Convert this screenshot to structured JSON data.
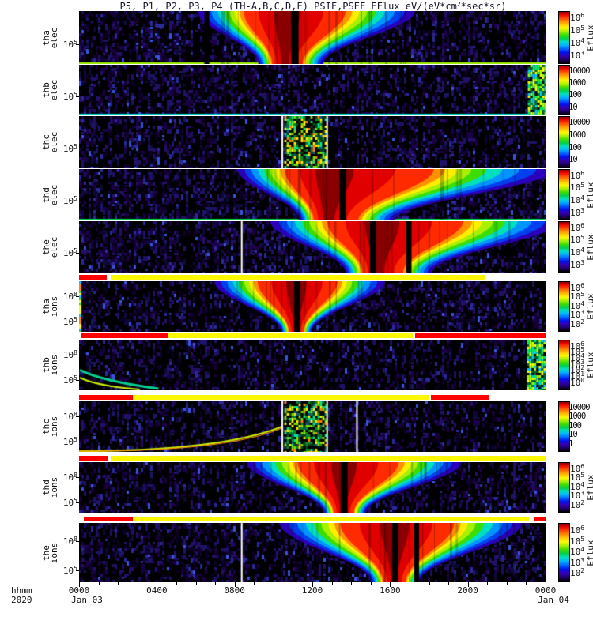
{
  "title": {
    "pre": "P5, P1, P2, P3, P4 (TH-A,B,C,D,E) PSIF,PSEF EFlux eV/(eV*cm",
    "sup": "2",
    "post": "*sec*sr)"
  },
  "axis": {
    "unit_label": "hhmm",
    "year": "2020",
    "date_start": "Jan 03",
    "date_end": "Jan 04",
    "major_ticks": [
      {
        "hour": 0,
        "label": "0000"
      },
      {
        "hour": 4,
        "label": "0400"
      },
      {
        "hour": 8,
        "label": "0800"
      },
      {
        "hour": 12,
        "label": "1200"
      },
      {
        "hour": 16,
        "label": "1600"
      },
      {
        "hour": 20,
        "label": "2000"
      },
      {
        "hour": 24,
        "label": "0000"
      }
    ],
    "hours_span": 24
  },
  "colors": {
    "quality_red": "#ff0000",
    "quality_yellow": "#fdf800",
    "background": "#ffffff",
    "spectrogram_floor": "#000000"
  },
  "chart_data": {
    "type": "heatmap",
    "subtype": "time-energy spectrogram stack",
    "x_axis": "Time (UT) Jan 03 2020 00:00 - Jan 04 2020 00:00",
    "y_axis": "Energy (eV), log scale",
    "z_axis": "EFlux eV/(eV*cm^2*sec*sr), rainbow color scale",
    "panels": [
      {
        "id": "tha-elec",
        "label_lines": [
          "tha",
          "elec"
        ],
        "yticks": [
          {
            "label": "10^5",
            "pos": 0.62
          }
        ],
        "colorbar": {
          "style": "exp",
          "label": "Eflux",
          "ticks": [
            "10^6",
            "10^5",
            "10^4",
            "10^3"
          ]
        },
        "description": "Intense electron flux enhancement ~06:00-16:00 UT with data gap near 11:00",
        "paint": {
          "seed": 11,
          "density": 0.55,
          "features": [
            {
              "type": "bottom_line",
              "color": "#9dee00"
            },
            {
              "type": "blob",
              "shape": "fan",
              "x0": 0.255,
              "peak": 0.44,
              "x1": 0.72,
              "botFactor": 0.3
            },
            {
              "type": "gap",
              "x": 0.272,
              "w": 0.005
            },
            {
              "type": "gap",
              "x": 0.458,
              "w": 0.011
            }
          ]
        }
      },
      {
        "id": "thb-elec",
        "label_lines": [
          "thb",
          "elec"
        ],
        "yticks": [
          {
            "label": "10^5",
            "pos": 0.62
          }
        ],
        "colorbar": {
          "style": "plain",
          "label": "",
          "ticks": [
            "10000",
            "1000",
            "100",
            "10"
          ]
        },
        "description": "Low background flux; enhancement at right edge near 24:00",
        "paint": {
          "seed": 23,
          "density": 0.52,
          "features": [
            {
              "type": "bottom_line",
              "color": "#00e8d0"
            },
            {
              "type": "right_edge_patch",
              "x0": 0.962
            }
          ]
        }
      },
      {
        "id": "thc-elec",
        "label_lines": [
          "thc",
          "elec"
        ],
        "yticks": [
          {
            "label": "10^5",
            "pos": 0.62
          }
        ],
        "colorbar": {
          "style": "plain",
          "label": "",
          "ticks": [
            "10000",
            "1000",
            "100",
            "10"
          ]
        },
        "description": "Quiet background with burst-mode block ~10:30-12:30",
        "paint": {
          "seed": 37,
          "density": 0.5,
          "features": [
            {
              "type": "burst_block",
              "x0": 0.44,
              "x1": 0.527
            },
            {
              "type": "white_line",
              "x": 0.434
            },
            {
              "type": "white_line",
              "x": 0.53
            }
          ]
        }
      },
      {
        "id": "thd-elec",
        "label_lines": [
          "thd",
          "elec"
        ],
        "yticks": [
          {
            "label": "10^5",
            "pos": 0.62
          }
        ],
        "colorbar": {
          "style": "exp",
          "label": "Eflux",
          "ticks": [
            "10^6",
            "10^5",
            "10^4",
            "10^3"
          ]
        },
        "description": "Broad electron enhancement ~08:00-24:00 UT, gap near 13:30",
        "paint": {
          "seed": 41,
          "density": 0.55,
          "features": [
            {
              "type": "bottom_line",
              "color": "#00e050"
            },
            {
              "type": "blob",
              "shape": "fan",
              "x0": 0.34,
              "peak": 0.53,
              "x1": 1.02,
              "botFactor": 0.3
            },
            {
              "type": "gap",
              "x": 0.562,
              "w": 0.009
            }
          ]
        }
      },
      {
        "id": "the-elec",
        "label_lines": [
          "the",
          "elec"
        ],
        "yticks": [
          {
            "label": "10^5",
            "pos": 0.62
          }
        ],
        "colorbar": {
          "style": "exp",
          "label": "Eflux",
          "ticks": [
            "10^6",
            "10^5",
            "10^4",
            "10^3"
          ]
        },
        "description": "Electron enhancement ~10:00-24:00 UT, gaps near 15:00 and 17:00",
        "paint": {
          "seed": 53,
          "density": 0.55,
          "features": [
            {
              "type": "white_line",
              "x": 0.347
            },
            {
              "type": "blob",
              "shape": "fan",
              "x0": 0.41,
              "peak": 0.64,
              "x1": 1.03,
              "botFactor": 0.3
            },
            {
              "type": "gap",
              "x": 0.627,
              "w": 0.008
            },
            {
              "type": "gap",
              "x": 0.705,
              "w": 0.006
            }
          ]
        }
      },
      {
        "id": "tha-ions",
        "label_lines": [
          "tha",
          "ions"
        ],
        "yticks": [
          {
            "label": "10^8",
            "pos": 0.3
          },
          {
            "label": "10^5",
            "pos": 0.8
          }
        ],
        "colorbar": {
          "style": "exp",
          "label": "Eflux",
          "ticks": [
            "10^6",
            "10^5",
            "10^4",
            "10^3",
            "10^2"
          ]
        },
        "description": "Ion flux funnel ~07:00-16:00 UT centered near 11:00, gap at center",
        "paint": {
          "seed": 61,
          "density": 0.5,
          "features": [
            {
              "type": "left_edge_strip"
            },
            {
              "type": "blob",
              "shape": "funnel",
              "x0": 0.29,
              "peak": 0.465,
              "x1": 0.655,
              "botFactor": 0.18
            },
            {
              "type": "gap",
              "x": 0.465,
              "w": 0.008
            }
          ]
        }
      },
      {
        "id": "thb-ions",
        "label_lines": [
          "thb",
          "ions"
        ],
        "yticks": [
          {
            "label": "10^8",
            "pos": 0.3
          },
          {
            "label": "10^5",
            "pos": 0.8
          }
        ],
        "colorbar": {
          "style": "exp",
          "label": "Eflux",
          "ticks": [
            "10^6",
            "10^5",
            "10^4",
            "10^3",
            "10^2",
            "10^1",
            "10^0"
          ]
        },
        "description": "Quiet ion background; low-energy wisp at start of day; enhancement at right edge",
        "paint": {
          "seed": 71,
          "density": 0.42,
          "features": [
            {
              "type": "wisp"
            },
            {
              "type": "right_edge_patch",
              "x0": 0.96
            }
          ]
        }
      },
      {
        "id": "thc-ions",
        "label_lines": [
          "thc",
          "ions"
        ],
        "yticks": [
          {
            "label": "10^8",
            "pos": 0.3
          },
          {
            "label": "10^5",
            "pos": 0.8
          }
        ],
        "colorbar": {
          "style": "plain",
          "label": "",
          "ticks": [
            "10000",
            "1000",
            "100",
            "10",
            "1"
          ]
        },
        "description": "Rising low-energy ion band 00:00-10:30; burst-mode block ~10:30-12:30",
        "paint": {
          "seed": 83,
          "density": 0.45,
          "features": [
            {
              "type": "rising_line",
              "x0": 0.0,
              "x1": 0.435,
              "y1": 0.5
            },
            {
              "type": "burst_block",
              "x0": 0.44,
              "x1": 0.527
            },
            {
              "type": "white_line",
              "x": 0.434
            },
            {
              "type": "white_line",
              "x": 0.53
            },
            {
              "type": "white_line",
              "x": 0.594
            }
          ]
        }
      },
      {
        "id": "thd-ions",
        "label_lines": [
          "thd",
          "ions"
        ],
        "yticks": [
          {
            "label": "10^8",
            "pos": 0.3
          },
          {
            "label": "10^5",
            "pos": 0.8
          }
        ],
        "colorbar": {
          "style": "exp",
          "label": "Eflux",
          "ticks": [
            "10^6",
            "10^5",
            "10^4",
            "10^3",
            "10^2"
          ]
        },
        "description": "Ion flux funnel ~09:00-20:00 UT centered near 13:30, gap at center",
        "paint": {
          "seed": 97,
          "density": 0.5,
          "features": [
            {
              "type": "blob",
              "shape": "funnel",
              "x0": 0.36,
              "peak": 0.565,
              "x1": 0.82,
              "botFactor": 0.2
            },
            {
              "type": "gap",
              "x": 0.565,
              "w": 0.009
            }
          ]
        }
      },
      {
        "id": "the-ions",
        "label_lines": [
          "the",
          "ions"
        ],
        "yticks": [
          {
            "label": "10^8",
            "pos": 0.3
          },
          {
            "label": "10^5",
            "pos": 0.8
          }
        ],
        "colorbar": {
          "style": "exp",
          "label": "Eflux",
          "ticks": [
            "10^6",
            "10^5",
            "10^4",
            "10^3",
            "10^2"
          ]
        },
        "description": "Ion flux funnel ~10:30-23:00 UT centered near 16:00, gaps near center",
        "paint": {
          "seed": 101,
          "density": 0.5,
          "features": [
            {
              "type": "white_line",
              "x": 0.347
            },
            {
              "type": "blob",
              "shape": "funnel",
              "x0": 0.43,
              "peak": 0.675,
              "x1": 0.95,
              "botFactor": 0.2
            },
            {
              "type": "gap",
              "x": 0.675,
              "w": 0.008
            },
            {
              "type": "gap",
              "x": 0.722,
              "w": 0.005
            }
          ]
        }
      }
    ],
    "quality_bars": [
      {
        "above": "tha-ions",
        "segments": [
          {
            "color": "#ff0000",
            "x0": 0.0,
            "x1": 0.06
          },
          {
            "color": "#fdf800",
            "x0": 0.068,
            "x1": 0.87
          }
        ]
      },
      {
        "above": "thb-ions",
        "segments": [
          {
            "color": "#ff0000",
            "x0": 0.005,
            "x1": 0.19
          },
          {
            "color": "#fdf800",
            "x0": 0.19,
            "x1": 0.715
          },
          {
            "color": "#ff0000",
            "x0": 0.72,
            "x1": 1.0
          }
        ]
      },
      {
        "above": "thc-ions",
        "segments": [
          {
            "color": "#ff0000",
            "x0": 0.0,
            "x1": 0.115
          },
          {
            "color": "#fdf800",
            "x0": 0.115,
            "x1": 0.75
          },
          {
            "color": "#ff0000",
            "x0": 0.755,
            "x1": 0.88
          }
        ]
      },
      {
        "above": "thd-ions",
        "segments": [
          {
            "color": "#ff0000",
            "x0": 0.0,
            "x1": 0.062
          },
          {
            "color": "#fdf800",
            "x0": 0.068,
            "x1": 1.0
          }
        ]
      },
      {
        "above": "the-ions",
        "segments": [
          {
            "color": "#ff0000",
            "x0": 0.01,
            "x1": 0.115
          },
          {
            "color": "#fdf800",
            "x0": 0.115,
            "x1": 0.965
          },
          {
            "color": "#ff0000",
            "x0": 0.975,
            "x1": 1.0
          }
        ]
      }
    ]
  }
}
